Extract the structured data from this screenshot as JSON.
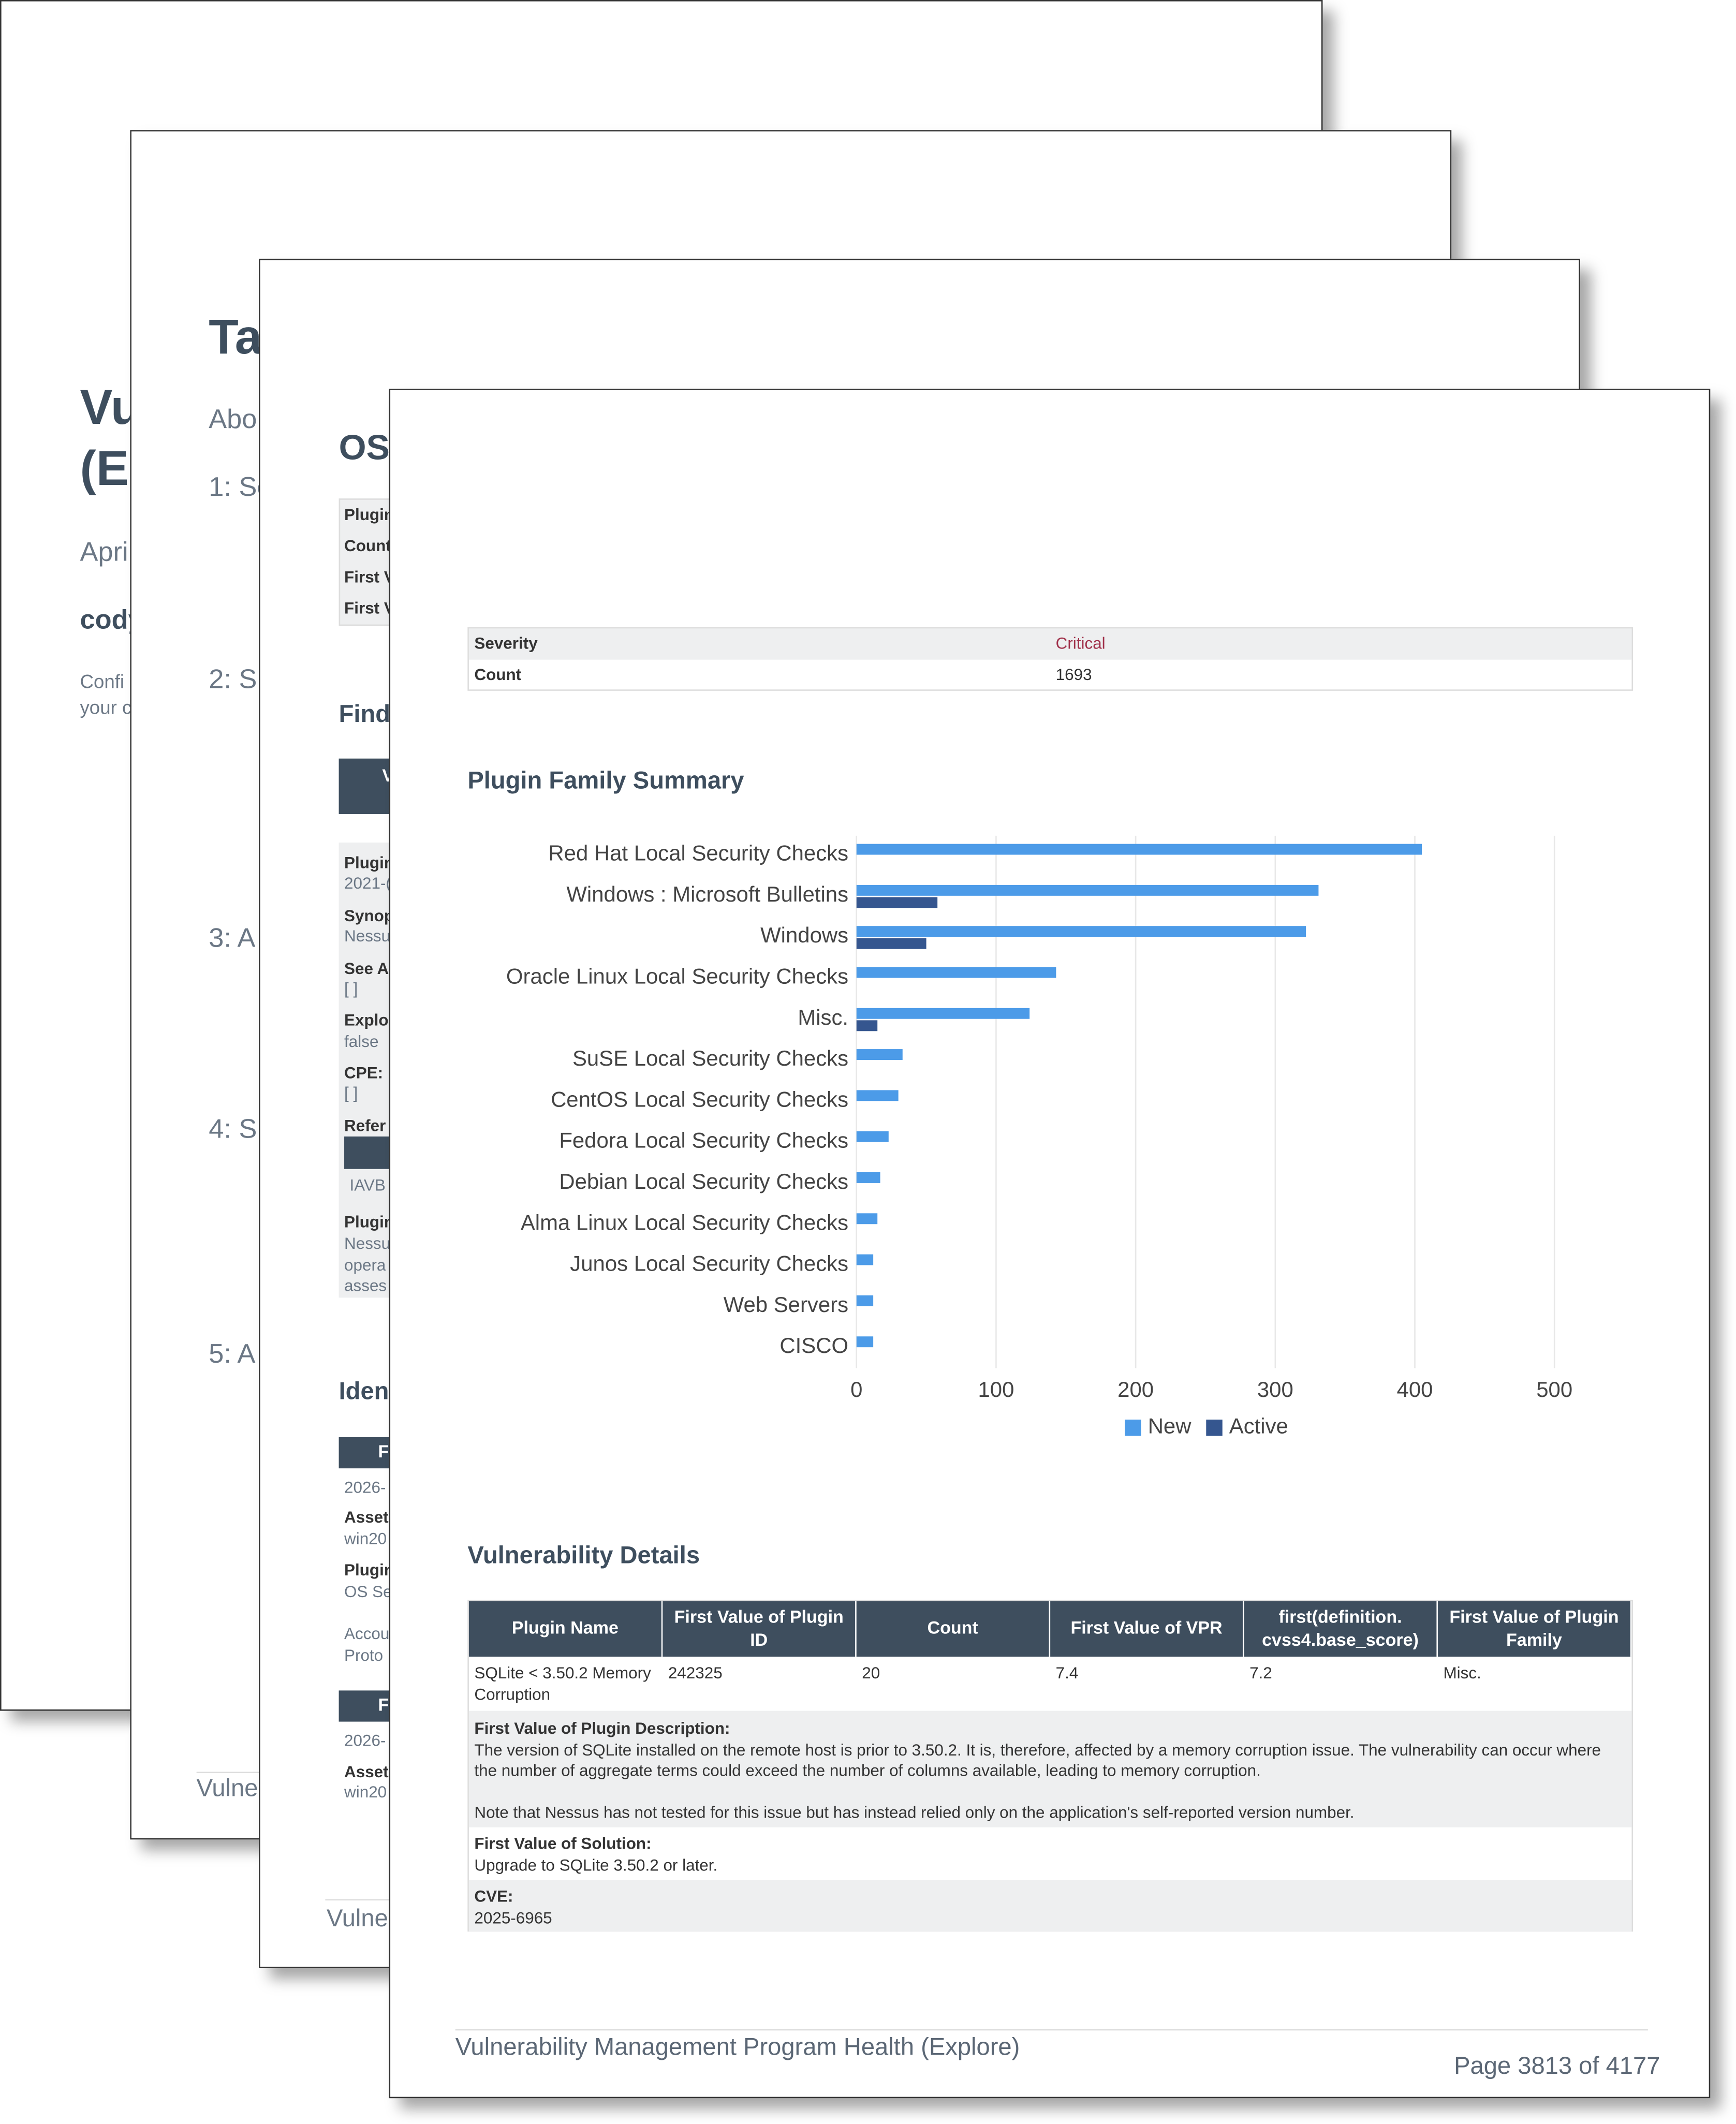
{
  "pages": [
    {
      "texts": [
        "Vu",
        "(E",
        "Apri",
        "cody",
        "Confi",
        "your c"
      ]
    },
    {
      "texts": [
        "Ta",
        "Abo",
        "1: Sc",
        "2: S",
        "3: A",
        "4: S",
        "5: A",
        "Vulne"
      ]
    },
    {
      "texts": [
        "OS",
        "Plugin",
        "Count",
        "First V",
        "First V",
        "Find",
        "V",
        "Plugin",
        "2021-(",
        "Synop",
        "Nessu",
        "See A",
        "[ ]",
        "Explo",
        "false",
        "CPE:",
        "[ ]",
        "Refer",
        "IAVB",
        "Plugin",
        "Nessu",
        "opera",
        "asses",
        "Iden",
        "F",
        "2026-",
        "Asset",
        "win20",
        "Plugin",
        "OS Se",
        "Accou",
        "Proto",
        "F",
        "2026-",
        "Asset",
        "win20",
        "Vulne"
      ]
    }
  ],
  "front_page": {
    "severity_table": {
      "rows": [
        [
          "Severity",
          "Critical"
        ],
        [
          "Count",
          1693
        ]
      ]
    },
    "chart_heading": "Plugin Family Summary",
    "details_heading": "Vulnerability Details",
    "details_table": {
      "headers": [
        "Plugin Name",
        "First Value of Plugin ID",
        "Count",
        "First Value of VPR",
        "first(definition. cvss4.base_score)",
        "First Value of Plugin Family"
      ],
      "rows": [
        [
          "SQLite < 3.50.2 Memory Corruption",
          242325,
          20,
          7.4,
          7.2,
          "Misc."
        ]
      ],
      "description_label": "First Value of Plugin Description:",
      "description": [
        "The version of SQLite installed on the remote host is prior to 3.50.2. It is, therefore, affected by a memory corruption issue. The vulnerability can occur where the number of aggregate terms could exceed the number of columns available, leading to memory corruption.",
        "Note that Nessus has not tested for this issue but has instead relied only on the application's self-reported version number."
      ],
      "solution_label": "First Value of Solution:",
      "solution": "Upgrade to SQLite 3.50.2 or later.",
      "cve_label": "CVE:",
      "cve": "2025-6965"
    },
    "footer": "Vulnerability Management Program Health (Explore)",
    "page_number": "Page 3813 of 4177"
  },
  "chart_data": {
    "type": "barh",
    "categories": [
      "Red Hat Local Security Checks",
      "Windows : Microsoft Bulletins",
      "Windows",
      "Oracle Linux Local Security Checks",
      "Misc.",
      "SuSE Local Security Checks",
      "CentOS Local Security Checks",
      "Fedora Local Security Checks",
      "Debian Local Security Checks",
      "Alma Linux Local Security Checks",
      "Junos Local Security Checks",
      "Web Servers",
      "CISCO"
    ],
    "series": [
      {
        "name": "New",
        "color": "#4c9be8",
        "values": [
          405,
          331,
          322,
          143,
          124,
          33,
          30,
          23,
          17,
          15,
          12,
          12,
          12
        ]
      },
      {
        "name": "Active",
        "color": "#35568f",
        "values": [
          0,
          58,
          50,
          0,
          15,
          0,
          0,
          0,
          0,
          0,
          0,
          0,
          0
        ]
      }
    ],
    "xlim": [
      0,
      500
    ],
    "xticks": [
      0,
      100,
      200,
      300,
      400,
      500
    ],
    "grid": true,
    "legend": "bottom"
  }
}
